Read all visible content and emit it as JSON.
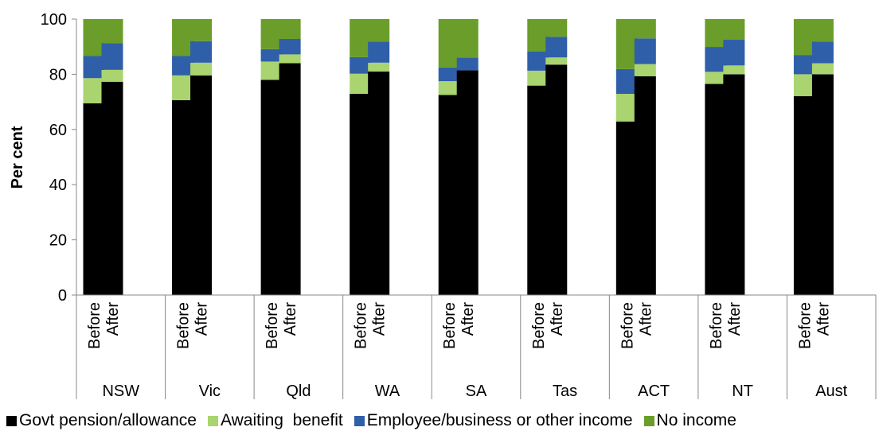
{
  "chart_data": {
    "type": "bar",
    "stacked": true,
    "ylabel": "Per cent",
    "ylim": [
      0,
      100
    ],
    "yticks": [
      0,
      20,
      40,
      60,
      80,
      100
    ],
    "groups": [
      "NSW",
      "Vic",
      "Qld",
      "WA",
      "SA",
      "Tas",
      "ACT",
      "NT",
      "Aust"
    ],
    "periods": [
      "Before",
      "After"
    ],
    "categories": [
      "NSW Before",
      "NSW After",
      "Vic Before",
      "Vic After",
      "Qld Before",
      "Qld After",
      "WA Before",
      "WA After",
      "SA Before",
      "SA After",
      "Tas Before",
      "Tas After",
      "ACT Before",
      "ACT After",
      "NT Before",
      "NT After",
      "Aust Before",
      "Aust After"
    ],
    "series": [
      {
        "name": "Govt pension/allowance",
        "color": "#000000",
        "values": [
          69.5,
          77.3,
          70.6,
          79.6,
          78.0,
          84.0,
          72.9,
          81.0,
          72.5,
          81.4,
          75.9,
          83.5,
          62.9,
          79.3,
          76.5,
          80.0,
          72.1,
          80.0
        ]
      },
      {
        "name": "Awaiting  benefit",
        "color": "#a9d46f",
        "values": [
          9.1,
          4.3,
          9.0,
          4.6,
          6.6,
          3.2,
          7.3,
          3.2,
          5.0,
          0.0,
          5.4,
          2.6,
          10.0,
          4.4,
          4.4,
          3.2,
          7.9,
          4.0
        ]
      },
      {
        "name": "Employee/business or other income",
        "color": "#2f5fa8",
        "values": [
          8.0,
          9.7,
          7.0,
          7.8,
          4.5,
          5.6,
          6.0,
          7.6,
          5.0,
          4.6,
          7.0,
          7.5,
          9.0,
          9.3,
          9.0,
          9.3,
          7.0,
          7.8
        ]
      },
      {
        "name": "No income",
        "color": "#6a9d2a",
        "values": [
          13.4,
          8.7,
          13.4,
          8.0,
          10.9,
          7.2,
          13.8,
          8.2,
          17.5,
          14.0,
          11.7,
          6.4,
          18.1,
          7.0,
          10.1,
          7.5,
          13.0,
          8.2
        ]
      }
    ]
  }
}
